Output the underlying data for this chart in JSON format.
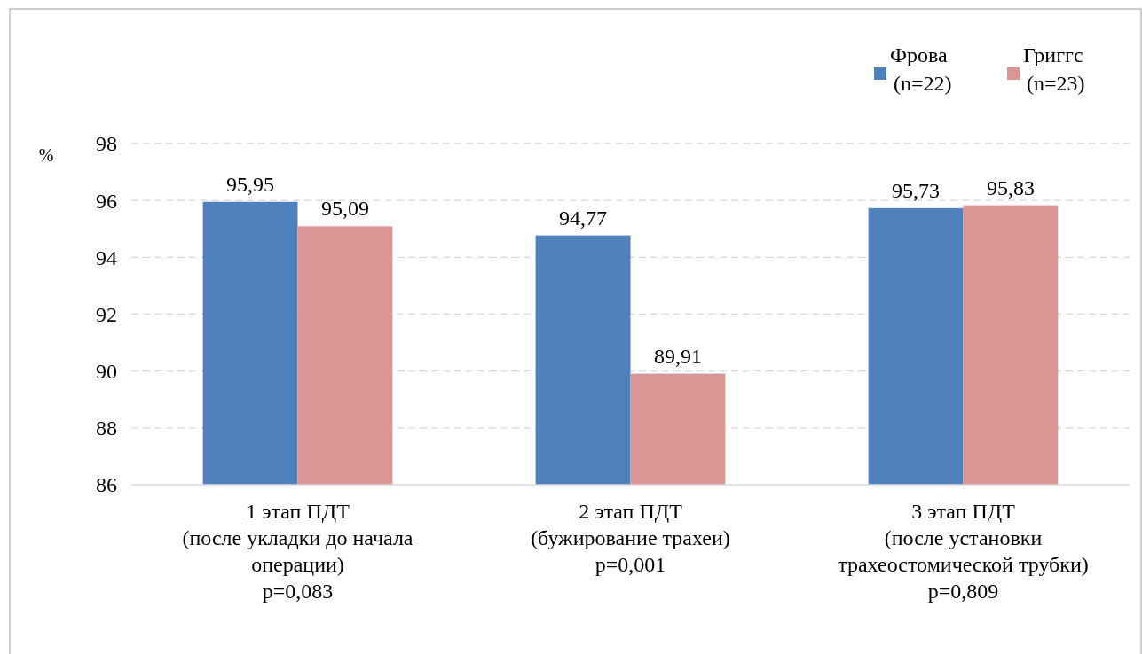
{
  "chart_data": {
    "type": "bar",
    "ylabel": "%",
    "categories": [
      "1 этап ПДТ\n(после укладки до начала\nоперации)\np=0,083",
      "2 этап ПДТ\n(бужирование трахеи)\np=0,001",
      "3 этап ПДТ\n(после установки\nтрахеостомической трубки)\np=0,809"
    ],
    "series": [
      {
        "name": "Фрова\n(n=22)",
        "color": "#4f81bd",
        "values": [
          95.95,
          94.77,
          95.73
        ],
        "value_labels": [
          "95,95",
          "94,77",
          "95,73"
        ]
      },
      {
        "name": "Григгс\n(n=23)",
        "color": "#d99694",
        "values": [
          95.09,
          89.91,
          95.83
        ],
        "value_labels": [
          "95,09",
          "89,91",
          "95,83"
        ]
      }
    ],
    "ylim": [
      86,
      98
    ],
    "yticks": [
      86,
      88,
      90,
      92,
      94,
      96,
      98
    ],
    "grid": "y",
    "legend": "top right"
  }
}
